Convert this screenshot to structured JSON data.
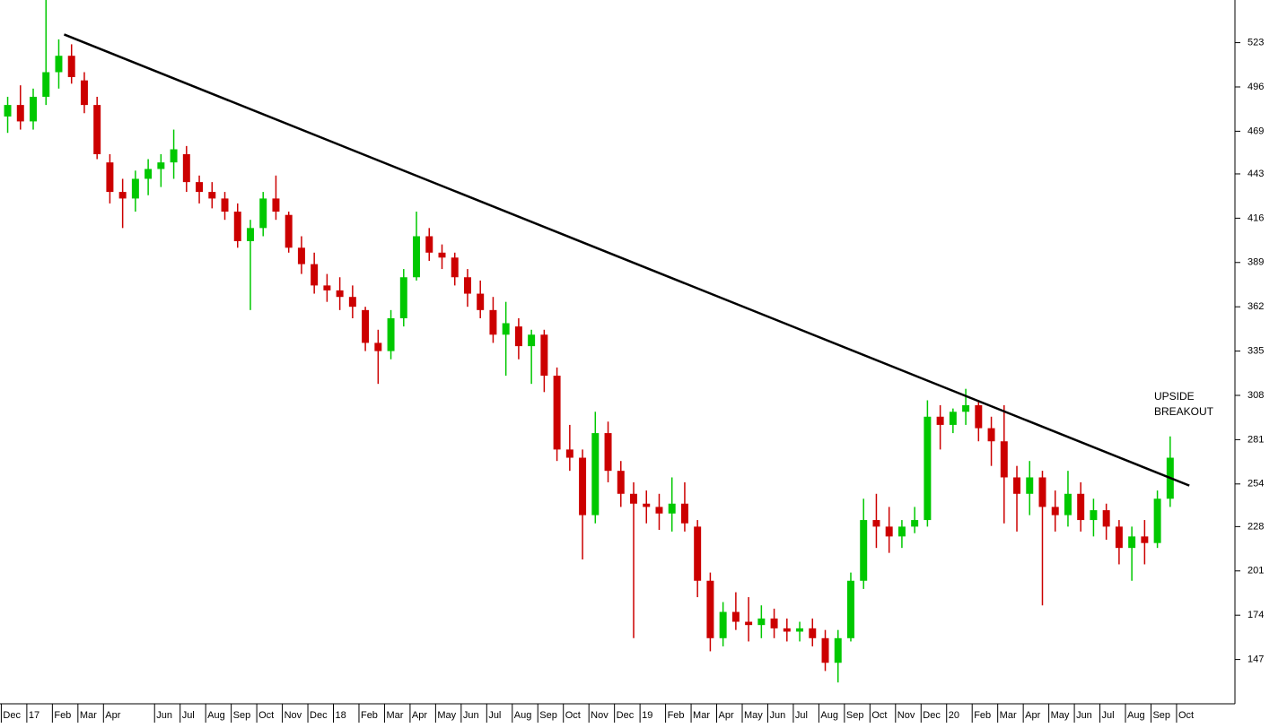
{
  "chart_data": {
    "type": "candlestick",
    "up_color": "#00c800",
    "down_color": "#cc0000",
    "xlim": [
      -0.05,
      48.25
    ],
    "ylim": [
      120,
      549
    ],
    "yticks": [
      147,
      174,
      201,
      228,
      254,
      281,
      308,
      335,
      362,
      389,
      416,
      443,
      469,
      496,
      523
    ],
    "xticks": [
      {
        "value": 0,
        "label": "Dec"
      },
      {
        "value": 1,
        "label": "17"
      },
      {
        "value": 2,
        "label": "Feb"
      },
      {
        "value": 3,
        "label": "Mar"
      },
      {
        "value": 4,
        "label": "Apr"
      },
      {
        "value": 6,
        "label": "Jun"
      },
      {
        "value": 7,
        "label": "Jul"
      },
      {
        "value": 8,
        "label": "Aug"
      },
      {
        "value": 9,
        "label": "Sep"
      },
      {
        "value": 10,
        "label": "Oct"
      },
      {
        "value": 11,
        "label": "Nov"
      },
      {
        "value": 12,
        "label": "Dec"
      },
      {
        "value": 13,
        "label": "18"
      },
      {
        "value": 14,
        "label": "Feb"
      },
      {
        "value": 15,
        "label": "Mar"
      },
      {
        "value": 16,
        "label": "Apr"
      },
      {
        "value": 17,
        "label": "May"
      },
      {
        "value": 18,
        "label": "Jun"
      },
      {
        "value": 19,
        "label": "Jul"
      },
      {
        "value": 20,
        "label": "Aug"
      },
      {
        "value": 21,
        "label": "Sep"
      },
      {
        "value": 22,
        "label": "Oct"
      },
      {
        "value": 23,
        "label": "Nov"
      },
      {
        "value": 24,
        "label": "Dec"
      },
      {
        "value": 25,
        "label": "19"
      },
      {
        "value": 26,
        "label": "Feb"
      },
      {
        "value": 27,
        "label": "Mar"
      },
      {
        "value": 28,
        "label": "Apr"
      },
      {
        "value": 29,
        "label": "May"
      },
      {
        "value": 30,
        "label": "Jun"
      },
      {
        "value": 31,
        "label": "Jul"
      },
      {
        "value": 32,
        "label": "Aug"
      },
      {
        "value": 33,
        "label": "Sep"
      },
      {
        "value": 34,
        "label": "Oct"
      },
      {
        "value": 35,
        "label": "Nov"
      },
      {
        "value": 36,
        "label": "Dec"
      },
      {
        "value": 37,
        "label": "20"
      },
      {
        "value": 38,
        "label": "Feb"
      },
      {
        "value": 39,
        "label": "Mar"
      },
      {
        "value": 40,
        "label": "Apr"
      },
      {
        "value": 41,
        "label": "May"
      },
      {
        "value": 42,
        "label": "Jun"
      },
      {
        "value": 43,
        "label": "Jul"
      },
      {
        "value": 44,
        "label": "Aug"
      },
      {
        "value": 45,
        "label": "Sep"
      },
      {
        "value": 46,
        "label": "Oct"
      }
    ],
    "x": [
      0.25,
      0.75,
      1.25,
      1.75,
      2.25,
      2.75,
      3.25,
      3.75,
      4.25,
      4.75,
      5.25,
      5.75,
      6.25,
      6.75,
      7.25,
      7.75,
      8.25,
      8.75,
      9.25,
      9.75,
      10.25,
      10.75,
      11.25,
      11.75,
      12.25,
      12.75,
      13.25,
      13.75,
      14.25,
      14.75,
      15.25,
      15.75,
      16.25,
      16.75,
      17.25,
      17.75,
      18.25,
      18.75,
      19.25,
      19.75,
      20.25,
      20.75,
      21.25,
      21.75,
      22.25,
      22.75,
      23.25,
      23.75,
      24.25,
      24.75,
      25.25,
      25.75,
      26.25,
      26.75,
      27.25,
      27.75,
      28.25,
      28.75,
      29.25,
      29.75,
      30.25,
      30.75,
      31.25,
      31.75,
      32.25,
      32.75,
      33.25,
      33.75,
      34.25,
      34.75,
      35.25,
      35.75,
      36.25,
      36.75,
      37.25,
      37.75,
      38.25,
      38.75,
      39.25,
      39.75,
      40.25,
      40.75,
      41.25,
      41.75,
      42.25,
      42.75,
      43.25,
      43.75,
      44.25,
      44.75,
      45.25,
      45.75
    ],
    "ohlc": [
      [
        478,
        490,
        468,
        485
      ],
      [
        485,
        497,
        470,
        475
      ],
      [
        475,
        495,
        470,
        490
      ],
      [
        490,
        549,
        485,
        505
      ],
      [
        505,
        525,
        495,
        515
      ],
      [
        515,
        522,
        498,
        502
      ],
      [
        500,
        505,
        480,
        485
      ],
      [
        485,
        490,
        452,
        455
      ],
      [
        450,
        455,
        425,
        432
      ],
      [
        432,
        440,
        410,
        428
      ],
      [
        428,
        445,
        420,
        440
      ],
      [
        440,
        452,
        430,
        446
      ],
      [
        446,
        455,
        435,
        450
      ],
      [
        450,
        470,
        440,
        458
      ],
      [
        455,
        460,
        432,
        438
      ],
      [
        438,
        442,
        425,
        432
      ],
      [
        432,
        438,
        422,
        428
      ],
      [
        428,
        432,
        415,
        420
      ],
      [
        420,
        425,
        398,
        402
      ],
      [
        402,
        415,
        360,
        410
      ],
      [
        410,
        432,
        405,
        428
      ],
      [
        428,
        442,
        415,
        420
      ],
      [
        418,
        420,
        395,
        398
      ],
      [
        398,
        405,
        382,
        388
      ],
      [
        388,
        395,
        370,
        375
      ],
      [
        375,
        382,
        365,
        372
      ],
      [
        372,
        380,
        360,
        368
      ],
      [
        368,
        375,
        355,
        362
      ],
      [
        360,
        362,
        335,
        340
      ],
      [
        340,
        348,
        315,
        335
      ],
      [
        335,
        360,
        330,
        355
      ],
      [
        355,
        385,
        350,
        380
      ],
      [
        380,
        420,
        378,
        405
      ],
      [
        405,
        410,
        390,
        395
      ],
      [
        395,
        400,
        385,
        392
      ],
      [
        392,
        395,
        375,
        380
      ],
      [
        380,
        385,
        362,
        370
      ],
      [
        370,
        378,
        355,
        360
      ],
      [
        360,
        368,
        340,
        345
      ],
      [
        345,
        365,
        320,
        352
      ],
      [
        350,
        355,
        330,
        338
      ],
      [
        338,
        348,
        315,
        345
      ],
      [
        345,
        348,
        310,
        320
      ],
      [
        320,
        325,
        268,
        275
      ],
      [
        275,
        290,
        262,
        270
      ],
      [
        270,
        275,
        208,
        235
      ],
      [
        235,
        298,
        230,
        285
      ],
      [
        285,
        292,
        255,
        262
      ],
      [
        262,
        268,
        240,
        248
      ],
      [
        248,
        255,
        160,
        242
      ],
      [
        242,
        250,
        230,
        240
      ],
      [
        240,
        248,
        226,
        236
      ],
      [
        236,
        258,
        225,
        242
      ],
      [
        242,
        255,
        225,
        230
      ],
      [
        228,
        232,
        185,
        195
      ],
      [
        195,
        200,
        152,
        160
      ],
      [
        160,
        182,
        155,
        176
      ],
      [
        176,
        188,
        165,
        170
      ],
      [
        170,
        185,
        158,
        168
      ],
      [
        168,
        180,
        160,
        172
      ],
      [
        172,
        178,
        160,
        166
      ],
      [
        166,
        172,
        158,
        164
      ],
      [
        164,
        170,
        158,
        166
      ],
      [
        166,
        172,
        155,
        160
      ],
      [
        160,
        165,
        140,
        145
      ],
      [
        145,
        165,
        133,
        160
      ],
      [
        160,
        200,
        158,
        195
      ],
      [
        195,
        245,
        190,
        232
      ],
      [
        232,
        248,
        215,
        228
      ],
      [
        228,
        240,
        212,
        222
      ],
      [
        222,
        232,
        215,
        228
      ],
      [
        228,
        240,
        224,
        232
      ],
      [
        232,
        305,
        228,
        295
      ],
      [
        295,
        302,
        275,
        290
      ],
      [
        290,
        300,
        285,
        298
      ],
      [
        298,
        312,
        290,
        302
      ],
      [
        302,
        305,
        280,
        288
      ],
      [
        288,
        295,
        265,
        280
      ],
      [
        280,
        302,
        230,
        258
      ],
      [
        258,
        265,
        225,
        248
      ],
      [
        248,
        268,
        235,
        258
      ],
      [
        258,
        262,
        180,
        240
      ],
      [
        240,
        250,
        225,
        235
      ],
      [
        235,
        262,
        228,
        248
      ],
      [
        248,
        255,
        225,
        232
      ],
      [
        232,
        245,
        222,
        238
      ],
      [
        238,
        242,
        220,
        228
      ],
      [
        228,
        232,
        205,
        215
      ],
      [
        215,
        228,
        195,
        222
      ],
      [
        222,
        232,
        205,
        218
      ],
      [
        218,
        250,
        215,
        245
      ],
      [
        245,
        283,
        240,
        270
      ]
    ],
    "trendline": {
      "x": [
        2.46,
        46.5
      ],
      "y": [
        528,
        253
      ],
      "color": "#000000"
    },
    "annotation": {
      "lines": [
        "UPSIDE",
        "BREAKOUT"
      ],
      "color": "#0000ff"
    }
  }
}
